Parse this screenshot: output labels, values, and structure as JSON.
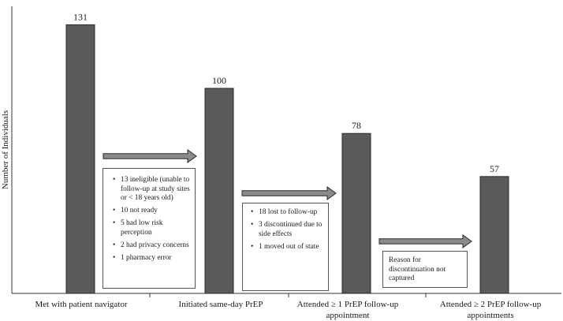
{
  "chart_data": {
    "type": "bar",
    "title": "",
    "xlabel": "",
    "ylabel": "Number of Individuals",
    "ylim": [
      0,
      140
    ],
    "grid": false,
    "categories": [
      [
        "Met with patient navigator"
      ],
      [
        "Initiated same-day PrEP"
      ],
      [
        "Attended ≥ 1 PrEP follow-up",
        "appointment"
      ],
      [
        "Attended ≥ 2 PrEP follow-up",
        "appointments"
      ]
    ],
    "values": [
      131,
      100,
      78,
      57
    ],
    "value_labels": [
      "131",
      "100",
      "78",
      "57"
    ],
    "bar_color": "#5a5a5a",
    "arrow_color": "#8a8a8a"
  },
  "annotations": [
    {
      "items": [
        "13 ineligible (unable to follow-up at study sites or < 18 years old)",
        "10 not ready",
        "5 had low risk perception",
        "2 had privacy concerns",
        "1 pharmacy error"
      ]
    },
    {
      "items": [
        "18 lost to follow-up",
        "3 discontinued due to side effects",
        "1 moved out of state"
      ]
    },
    {
      "text": "Reason for discontinuation not captured"
    }
  ]
}
